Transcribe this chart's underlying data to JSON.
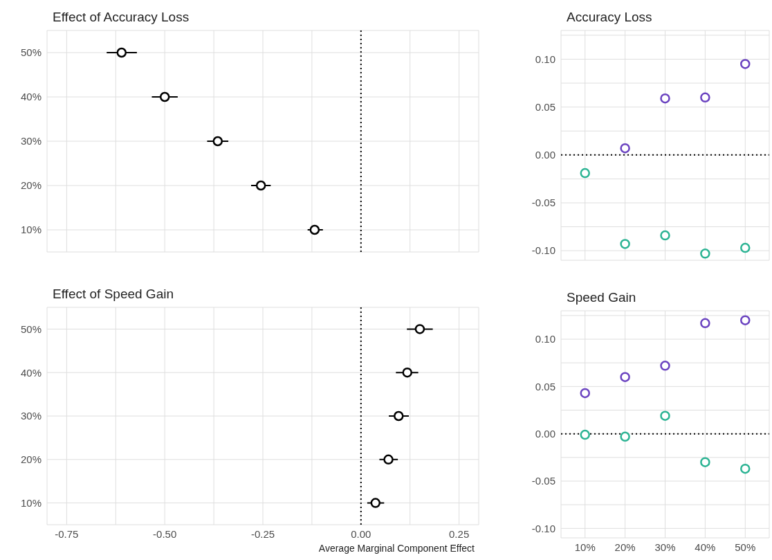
{
  "chart_data": [
    {
      "type": "scatter",
      "orientation": "horizontal",
      "title": "Effect of Accuracy Loss",
      "categories": [
        "50%",
        "40%",
        "30%",
        "20%",
        "10%"
      ],
      "series": [
        {
          "color": "#000000",
          "values": [
            -0.61,
            -0.5,
            -0.365,
            -0.255,
            -0.118
          ],
          "errors": [
            [
              -0.648,
              -0.571
            ],
            [
              -0.533,
              -0.467
            ],
            [
              -0.392,
              -0.338
            ],
            [
              -0.28,
              -0.23
            ],
            [
              -0.136,
              -0.097
            ]
          ]
        }
      ],
      "xlim": [
        -0.8,
        0.3
      ],
      "xticks": [
        {
          "value": -0.75,
          "label": null
        },
        {
          "value": -0.625,
          "label": null
        },
        {
          "value": -0.5,
          "label": null
        },
        {
          "value": -0.375,
          "label": null
        },
        {
          "value": -0.25,
          "label": null
        },
        {
          "value": -0.125,
          "label": null
        },
        {
          "value": 0,
          "label": null
        },
        {
          "value": 0.125,
          "label": null
        },
        {
          "value": 0.25,
          "label": null
        }
      ],
      "tick_labels": "y",
      "grid": true,
      "marker": "circle",
      "ref_lines": [
        {
          "axis": "x",
          "value": 0,
          "line_style": "dotted",
          "color": "#000000"
        }
      ]
    },
    {
      "type": "scatter",
      "title": "Accuracy Loss",
      "categories": [
        null,
        null,
        null,
        null,
        null
      ],
      "series": [
        {
          "color": "#6a42c0",
          "values": [
            null,
            0.007,
            0.059,
            0.06,
            0.095
          ]
        },
        {
          "color": "#2bb393",
          "values": [
            -0.019,
            -0.093,
            -0.084,
            -0.103,
            -0.097
          ]
        }
      ],
      "ylim": [
        -0.11,
        0.13
      ],
      "yticks": [
        {
          "value": -0.1,
          "label": "-0.10"
        },
        {
          "value": -0.075,
          "label": null
        },
        {
          "value": -0.05,
          "label": "-0.05"
        },
        {
          "value": -0.025,
          "label": null
        },
        {
          "value": 0,
          "label": "0.00"
        },
        {
          "value": 0.025,
          "label": null
        },
        {
          "value": 0.05,
          "label": "0.05"
        },
        {
          "value": 0.075,
          "label": null
        },
        {
          "value": 0.1,
          "label": "0.10"
        },
        {
          "value": 0.125,
          "label": null
        }
      ],
      "tick_labels": "y",
      "grid": true,
      "marker": "circle",
      "ref_lines": [
        {
          "axis": "y",
          "value": 0,
          "line_style": "dotted",
          "color": "#000000"
        }
      ]
    },
    {
      "type": "scatter",
      "orientation": "horizontal",
      "title": "Effect of Speed Gain",
      "xlabel": "Average Marginal Component Effect",
      "categories": [
        "50%",
        "40%",
        "30%",
        "20%",
        "10%"
      ],
      "series": [
        {
          "color": "#000000",
          "values": [
            0.15,
            0.118,
            0.096,
            0.07,
            0.037
          ],
          "errors": [
            [
              0.117,
              0.183
            ],
            [
              0.089,
              0.146
            ],
            [
              0.071,
              0.122
            ],
            [
              0.047,
              0.094
            ],
            [
              0.016,
              0.059
            ]
          ]
        }
      ],
      "xlim": [
        -0.8,
        0.3
      ],
      "xticks": [
        {
          "value": -0.75,
          "label": "-0.75"
        },
        {
          "value": -0.625,
          "label": null
        },
        {
          "value": -0.5,
          "label": "-0.50"
        },
        {
          "value": -0.375,
          "label": null
        },
        {
          "value": -0.25,
          "label": "-0.25"
        },
        {
          "value": -0.125,
          "label": null
        },
        {
          "value": 0,
          "label": "0.00"
        },
        {
          "value": 0.125,
          "label": null
        },
        {
          "value": 0.25,
          "label": "0.25"
        }
      ],
      "grid": true,
      "marker": "circle",
      "ref_lines": [
        {
          "axis": "x",
          "value": 0,
          "line_style": "dotted",
          "color": "#000000"
        }
      ]
    },
    {
      "type": "scatter",
      "title": "Speed Gain",
      "categories": [
        "10%",
        "20%",
        "30%",
        "40%",
        "50%"
      ],
      "series": [
        {
          "color": "#6a42c0",
          "values": [
            0.043,
            0.06,
            0.072,
            0.117,
            0.12
          ]
        },
        {
          "color": "#2bb393",
          "values": [
            -0.001,
            -0.003,
            0.019,
            -0.03,
            -0.037
          ]
        }
      ],
      "ylim": [
        -0.11,
        0.13
      ],
      "yticks": [
        {
          "value": -0.1,
          "label": "-0.10"
        },
        {
          "value": -0.075,
          "label": null
        },
        {
          "value": -0.05,
          "label": "-0.05"
        },
        {
          "value": -0.025,
          "label": null
        },
        {
          "value": 0,
          "label": "0.00"
        },
        {
          "value": 0.025,
          "label": null
        },
        {
          "value": 0.05,
          "label": "0.05"
        },
        {
          "value": 0.075,
          "label": null
        },
        {
          "value": 0.1,
          "label": "0.10"
        },
        {
          "value": 0.125,
          "label": null
        }
      ],
      "grid": true,
      "marker": "circle",
      "ref_lines": [
        {
          "axis": "y",
          "value": 0,
          "line_style": "dotted",
          "color": "#000000"
        }
      ]
    }
  ]
}
